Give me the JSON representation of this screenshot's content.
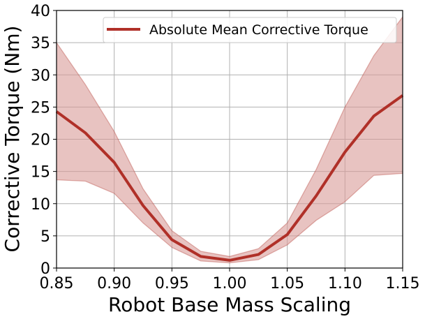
{
  "chart_data": {
    "type": "line",
    "xlabel": "Robot Base Mass Scaling",
    "ylabel": "Corrective Torque (Nm)",
    "xlim": [
      0.85,
      1.15
    ],
    "ylim": [
      0,
      40
    ],
    "x_ticks": [
      "0.85",
      "0.90",
      "0.95",
      "1.00",
      "1.05",
      "1.10",
      "1.15"
    ],
    "y_ticks": [
      "0",
      "5",
      "10",
      "15",
      "20",
      "25",
      "30",
      "35",
      "40"
    ],
    "grid": true,
    "legend_position": "top-right",
    "series": [
      {
        "name": "Absolute Mean Corrective Torque",
        "color": "#b03028",
        "band_color": "#d99b98",
        "x": [
          0.85,
          0.875,
          0.9,
          0.925,
          0.95,
          0.975,
          1.0,
          1.025,
          1.05,
          1.075,
          1.1,
          1.125,
          1.15
        ],
        "values": [
          24.3,
          21.0,
          16.4,
          9.7,
          4.4,
          1.8,
          1.2,
          2.1,
          5.2,
          11.2,
          18.0,
          23.6,
          26.8
        ],
        "upper": [
          35.0,
          28.5,
          21.2,
          12.3,
          5.8,
          2.6,
          1.8,
          3.0,
          7.0,
          15.3,
          25.0,
          33.0,
          39.0
        ],
        "lower": [
          13.7,
          13.5,
          11.6,
          7.0,
          3.2,
          1.1,
          0.8,
          1.3,
          3.6,
          7.4,
          10.3,
          14.4,
          14.7
        ]
      }
    ]
  }
}
